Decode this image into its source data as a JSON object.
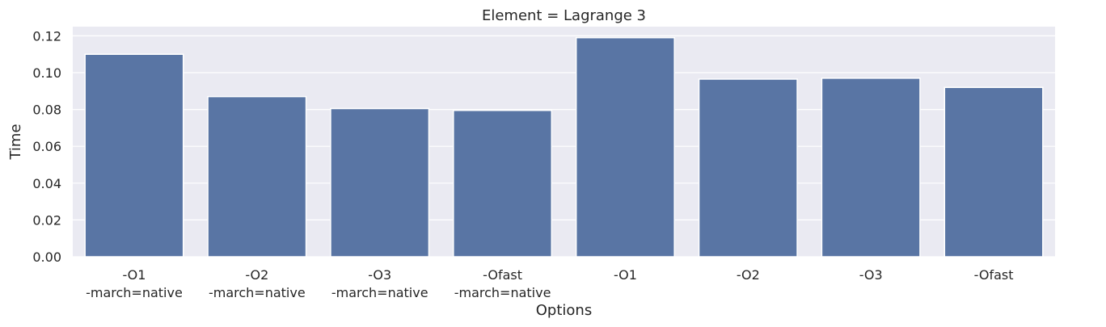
{
  "chart_data": {
    "type": "bar",
    "title": "Element = Lagrange 3",
    "xlabel": "Options",
    "ylabel": "Time",
    "categories": [
      "-O1\n-march=native",
      "-O2\n-march=native",
      "-O3\n-march=native",
      "-Ofast\n-march=native",
      "-O1",
      "-O2",
      "-O3",
      "-Ofast"
    ],
    "values": [
      0.11,
      0.087,
      0.0805,
      0.0795,
      0.119,
      0.0965,
      0.097,
      0.092
    ],
    "ylim": [
      0,
      0.125
    ],
    "yticks": [
      0.0,
      0.02,
      0.04,
      0.06,
      0.08,
      0.1,
      0.12
    ],
    "ytick_labels": [
      "0.00",
      "0.02",
      "0.04",
      "0.06",
      "0.08",
      "0.10",
      "0.12"
    ],
    "grid": true,
    "style": {
      "background": "#EAEAF2",
      "grid_color": "#FFFFFF",
      "bar_color": "#5975A4",
      "text_color": "#262626"
    }
  }
}
